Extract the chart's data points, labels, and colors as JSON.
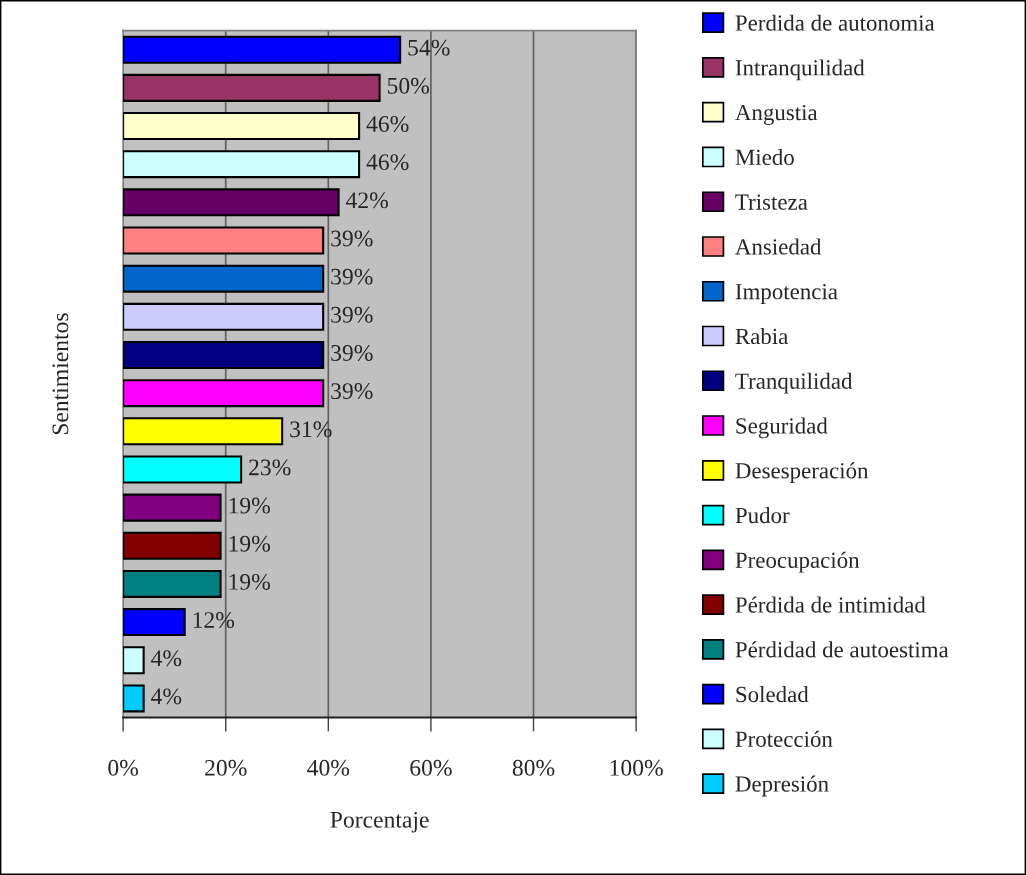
{
  "chart_data": {
    "type": "bar",
    "orientation": "horizontal",
    "xlabel": "Porcentaje",
    "ylabel": "Sentimientos",
    "categories": [
      null,
      null,
      null,
      null,
      null,
      null,
      null,
      null,
      null,
      null,
      null,
      null,
      null,
      null,
      null,
      null,
      null,
      null
    ],
    "series": [
      {
        "name": "Perdida de autonomia",
        "color": "#0000ff",
        "values": [
          54,
          null,
          null,
          null,
          null,
          null,
          null,
          null,
          null,
          null,
          null,
          null,
          null,
          null,
          null,
          null,
          null,
          null
        ],
        "value_labels": [
          "54%",
          null,
          null,
          null,
          null,
          null,
          null,
          null,
          null,
          null,
          null,
          null,
          null,
          null,
          null,
          null,
          null,
          null
        ]
      },
      {
        "name": "Intranquilidad",
        "color": "#993366",
        "values": [
          null,
          50,
          null,
          null,
          null,
          null,
          null,
          null,
          null,
          null,
          null,
          null,
          null,
          null,
          null,
          null,
          null,
          null
        ],
        "value_labels": [
          null,
          "50%",
          null,
          null,
          null,
          null,
          null,
          null,
          null,
          null,
          null,
          null,
          null,
          null,
          null,
          null,
          null,
          null
        ]
      },
      {
        "name": "Angustia",
        "color": "#ffffcc",
        "values": [
          null,
          null,
          46,
          null,
          null,
          null,
          null,
          null,
          null,
          null,
          null,
          null,
          null,
          null,
          null,
          null,
          null,
          null
        ],
        "value_labels": [
          null,
          null,
          "46%",
          null,
          null,
          null,
          null,
          null,
          null,
          null,
          null,
          null,
          null,
          null,
          null,
          null,
          null,
          null
        ]
      },
      {
        "name": "Miedo",
        "color": "#ccffff",
        "values": [
          null,
          null,
          null,
          46,
          null,
          null,
          null,
          null,
          null,
          null,
          null,
          null,
          null,
          null,
          null,
          null,
          null,
          null
        ],
        "value_labels": [
          null,
          null,
          null,
          "46%",
          null,
          null,
          null,
          null,
          null,
          null,
          null,
          null,
          null,
          null,
          null,
          null,
          null,
          null
        ]
      },
      {
        "name": "Tristeza",
        "color": "#660066",
        "values": [
          null,
          null,
          null,
          null,
          42,
          null,
          null,
          null,
          null,
          null,
          null,
          null,
          null,
          null,
          null,
          null,
          null,
          null
        ],
        "value_labels": [
          null,
          null,
          null,
          null,
          "42%",
          null,
          null,
          null,
          null,
          null,
          null,
          null,
          null,
          null,
          null,
          null,
          null,
          null
        ]
      },
      {
        "name": "Ansiedad",
        "color": "#ff8080",
        "values": [
          null,
          null,
          null,
          null,
          null,
          39,
          null,
          null,
          null,
          null,
          null,
          null,
          null,
          null,
          null,
          null,
          null,
          null
        ],
        "value_labels": [
          null,
          null,
          null,
          null,
          null,
          "39%",
          null,
          null,
          null,
          null,
          null,
          null,
          null,
          null,
          null,
          null,
          null,
          null
        ]
      },
      {
        "name": "Impotencia",
        "color": "#0066cc",
        "values": [
          null,
          null,
          null,
          null,
          null,
          null,
          39,
          null,
          null,
          null,
          null,
          null,
          null,
          null,
          null,
          null,
          null,
          null
        ],
        "value_labels": [
          null,
          null,
          null,
          null,
          null,
          null,
          "39%",
          null,
          null,
          null,
          null,
          null,
          null,
          null,
          null,
          null,
          null,
          null
        ]
      },
      {
        "name": "Rabia",
        "color": "#ccccff",
        "values": [
          null,
          null,
          null,
          null,
          null,
          null,
          null,
          39,
          null,
          null,
          null,
          null,
          null,
          null,
          null,
          null,
          null,
          null
        ],
        "value_labels": [
          null,
          null,
          null,
          null,
          null,
          null,
          null,
          "39%",
          null,
          null,
          null,
          null,
          null,
          null,
          null,
          null,
          null,
          null
        ]
      },
      {
        "name": "Tranquilidad",
        "color": "#000080",
        "values": [
          null,
          null,
          null,
          null,
          null,
          null,
          null,
          null,
          39,
          null,
          null,
          null,
          null,
          null,
          null,
          null,
          null,
          null
        ],
        "value_labels": [
          null,
          null,
          null,
          null,
          null,
          null,
          null,
          null,
          "39%",
          null,
          null,
          null,
          null,
          null,
          null,
          null,
          null,
          null
        ]
      },
      {
        "name": "Seguridad",
        "color": "#ff00ff",
        "values": [
          null,
          null,
          null,
          null,
          null,
          null,
          null,
          null,
          null,
          39,
          null,
          null,
          null,
          null,
          null,
          null,
          null,
          null
        ],
        "value_labels": [
          null,
          null,
          null,
          null,
          null,
          null,
          null,
          null,
          null,
          "39%",
          null,
          null,
          null,
          null,
          null,
          null,
          null,
          null
        ]
      },
      {
        "name": "Desesperación",
        "color": "#ffff00",
        "values": [
          null,
          null,
          null,
          null,
          null,
          null,
          null,
          null,
          null,
          null,
          31,
          null,
          null,
          null,
          null,
          null,
          null,
          null
        ],
        "value_labels": [
          null,
          null,
          null,
          null,
          null,
          null,
          null,
          null,
          null,
          null,
          "31%",
          null,
          null,
          null,
          null,
          null,
          null,
          null
        ]
      },
      {
        "name": "Pudor",
        "color": "#00ffff",
        "values": [
          null,
          null,
          null,
          null,
          null,
          null,
          null,
          null,
          null,
          null,
          null,
          23,
          null,
          null,
          null,
          null,
          null,
          null
        ],
        "value_labels": [
          null,
          null,
          null,
          null,
          null,
          null,
          null,
          null,
          null,
          null,
          null,
          "23%",
          null,
          null,
          null,
          null,
          null,
          null
        ]
      },
      {
        "name": "Preocupación",
        "color": "#800080",
        "values": [
          null,
          null,
          null,
          null,
          null,
          null,
          null,
          null,
          null,
          null,
          null,
          null,
          19,
          null,
          null,
          null,
          null,
          null
        ],
        "value_labels": [
          null,
          null,
          null,
          null,
          null,
          null,
          null,
          null,
          null,
          null,
          null,
          null,
          "19%",
          null,
          null,
          null,
          null,
          null
        ]
      },
      {
        "name": "Pérdida de intimidad",
        "color": "#800000",
        "values": [
          null,
          null,
          null,
          null,
          null,
          null,
          null,
          null,
          null,
          null,
          null,
          null,
          null,
          19,
          null,
          null,
          null,
          null
        ],
        "value_labels": [
          null,
          null,
          null,
          null,
          null,
          null,
          null,
          null,
          null,
          null,
          null,
          null,
          null,
          "19%",
          null,
          null,
          null,
          null
        ]
      },
      {
        "name": "Pérdidad de autoestima",
        "color": "#008080",
        "values": [
          null,
          null,
          null,
          null,
          null,
          null,
          null,
          null,
          null,
          null,
          null,
          null,
          null,
          null,
          19,
          null,
          null,
          null
        ],
        "value_labels": [
          null,
          null,
          null,
          null,
          null,
          null,
          null,
          null,
          null,
          null,
          null,
          null,
          null,
          null,
          "19%",
          null,
          null,
          null
        ]
      },
      {
        "name": "Soledad",
        "color": "#0000ff",
        "values": [
          null,
          null,
          null,
          null,
          null,
          null,
          null,
          null,
          null,
          null,
          null,
          null,
          null,
          null,
          null,
          12,
          null,
          null
        ],
        "value_labels": [
          null,
          null,
          null,
          null,
          null,
          null,
          null,
          null,
          null,
          null,
          null,
          null,
          null,
          null,
          null,
          "12%",
          null,
          null
        ]
      },
      {
        "name": "Protección",
        "color": "#ccffff",
        "values": [
          null,
          null,
          null,
          null,
          null,
          null,
          null,
          null,
          null,
          null,
          null,
          null,
          null,
          null,
          null,
          null,
          4,
          null
        ],
        "value_labels": [
          null,
          null,
          null,
          null,
          null,
          null,
          null,
          null,
          null,
          null,
          null,
          null,
          null,
          null,
          null,
          null,
          "4%",
          null
        ]
      },
      {
        "name": "Depresión",
        "color": "#00ccff",
        "values": [
          null,
          null,
          null,
          null,
          null,
          null,
          null,
          null,
          null,
          null,
          null,
          null,
          null,
          null,
          null,
          null,
          null,
          4
        ],
        "value_labels": [
          null,
          null,
          null,
          null,
          null,
          null,
          null,
          null,
          null,
          null,
          null,
          null,
          null,
          null,
          null,
          null,
          null,
          "4%"
        ]
      }
    ],
    "xlim": [
      0,
      100
    ],
    "xticks": [
      {
        "value": 0,
        "label": "0%"
      },
      {
        "value": 20,
        "label": "20%"
      },
      {
        "value": 40,
        "label": "40%"
      },
      {
        "value": 60,
        "label": "60%"
      },
      {
        "value": 80,
        "label": "80%"
      },
      {
        "value": 100,
        "label": "100%"
      }
    ],
    "grid": "x",
    "legend": "right",
    "tick_labels": "x"
  }
}
